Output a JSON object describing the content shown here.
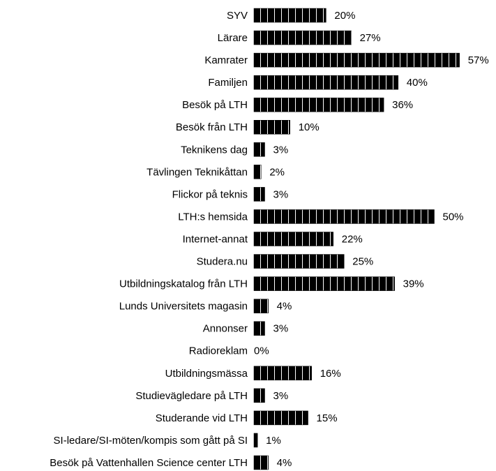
{
  "chart_data": {
    "type": "bar",
    "orientation": "horizontal",
    "color": "#000000",
    "categories": [
      "SYV",
      "Lärare",
      "Kamrater",
      "Familjen",
      "Besök på LTH",
      "Besök från LTH",
      "Teknikens dag",
      "Tävlingen Teknikåttan",
      "Flickor på teknis",
      "LTH:s hemsida",
      "Internet-annat",
      "Studera.nu",
      "Utbildningskatalog från LTH",
      "Lunds Universitets magasin",
      "Annonser",
      "Radioreklam",
      "Utbildningsmässa",
      "Studievägledare på LTH",
      "Studerande vid LTH",
      "SI-ledare/SI-möten/kompis som gått på SI",
      "Besök på Vattenhallen Science center LTH"
    ],
    "values": [
      20,
      27,
      57,
      40,
      36,
      10,
      3,
      2,
      3,
      50,
      22,
      25,
      39,
      4,
      3,
      0,
      16,
      3,
      15,
      1,
      4
    ],
    "value_labels": [
      "20%",
      "27%",
      "57%",
      "40%",
      "36%",
      "10%",
      "3%",
      "2%",
      "3%",
      "50%",
      "22%",
      "25%",
      "39%",
      "4%",
      "3%",
      "0%",
      "16%",
      "3%",
      "15%",
      "1%",
      "4%"
    ]
  }
}
